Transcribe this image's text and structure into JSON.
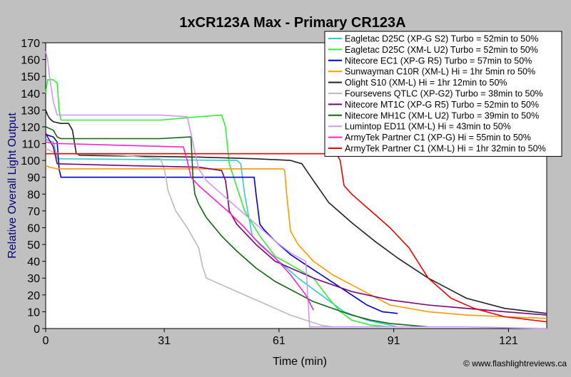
{
  "chart_data": {
    "type": "line",
    "title": "1xCR123A Max - Primary CR123A",
    "xlabel": "Time (min)",
    "ylabel": "Relative Overall Light Output",
    "xlim": [
      0,
      131
    ],
    "ylim": [
      0,
      170
    ],
    "xticks": [
      0,
      31,
      61,
      91,
      121
    ],
    "yticks": [
      0,
      10,
      20,
      30,
      40,
      50,
      60,
      70,
      80,
      90,
      100,
      110,
      120,
      130,
      140,
      150,
      160,
      170
    ],
    "grid": false,
    "legend_position": "top-right",
    "series": [
      {
        "name": "Eagletac D25C (XP-G S2) Turbo = 52min to 50%",
        "color": "#33cccc",
        "x": [
          0,
          0.5,
          2,
          3,
          4,
          48,
          50,
          51,
          52,
          54,
          60,
          66,
          72,
          78,
          84,
          90,
          92
        ],
        "y": [
          113,
          112,
          111,
          101,
          101,
          100,
          100,
          98,
          80,
          55,
          42,
          30,
          20,
          10,
          5,
          2,
          1
        ]
      },
      {
        "name": "Eagletac D25C (XM-L U2) Turbo  = 52min to 50%",
        "color": "#33ee33",
        "x": [
          0,
          0.5,
          2,
          3,
          3.5,
          4,
          30,
          40,
          46,
          47,
          48,
          52,
          56,
          60,
          64,
          67,
          70,
          74,
          77,
          80,
          85,
          90
        ],
        "y": [
          140,
          148,
          148,
          146,
          130,
          124,
          124,
          126,
          127,
          120,
          98,
          70,
          55,
          43,
          38,
          34,
          30,
          18,
          10,
          5,
          2,
          1
        ]
      },
      {
        "name": "Nitecore EC1 (XP-G R5) Turbo = 57min to 50%",
        "color": "#0000cc",
        "x": [
          0,
          0.5,
          2,
          3,
          3.5,
          4,
          50,
          54,
          54.5,
          55,
          56,
          57,
          60,
          64,
          68,
          72,
          76,
          80,
          84,
          88,
          92
        ],
        "y": [
          116,
          115,
          114,
          111,
          95,
          90,
          90,
          90,
          90,
          80,
          62,
          59,
          52,
          44,
          38,
          32,
          26,
          20,
          14,
          10,
          9
        ]
      },
      {
        "name": "Sunwayman C10R (XM-L) Hi = 1hr 5min ro 50%",
        "color": "#ff9900",
        "x": [
          0,
          1,
          3,
          5,
          62,
          62.5,
          63,
          64,
          66,
          70,
          75,
          80,
          85,
          90,
          100,
          110,
          120,
          131
        ],
        "y": [
          97,
          96,
          95,
          95,
          95,
          94,
          80,
          58,
          50,
          40,
          32,
          26,
          20,
          14,
          10,
          8,
          7,
          6
        ]
      },
      {
        "name": "Olight S10 (XM-L) Hi = 1hr 12min to 50%",
        "color": "#222222",
        "x": [
          0,
          0.5,
          1,
          2,
          4,
          6,
          7,
          8,
          9,
          40,
          55,
          64,
          67,
          70,
          74,
          80,
          86,
          92,
          100,
          110,
          120,
          131
        ],
        "y": [
          130,
          127,
          125,
          123,
          122,
          122,
          118,
          104,
          103,
          102,
          101,
          100,
          98,
          88,
          75,
          63,
          52,
          42,
          30,
          18,
          12,
          9
        ]
      },
      {
        "name": "Foursevens QTLC (XP-G2) Turbo = 38min to 50%",
        "color": "#bbbbbb",
        "x": [
          0,
          2,
          4,
          6,
          20,
          30,
          31,
          32,
          34,
          37,
          40,
          41,
          42,
          50,
          58,
          64,
          68,
          72,
          75
        ],
        "y": [
          107,
          105,
          104,
          104,
          103,
          101,
          95,
          82,
          70,
          60,
          48,
          37,
          30,
          22,
          14,
          8,
          5,
          2,
          1
        ]
      },
      {
        "name": "Nitecore MT1C (XP-G R5) Turbo = 52min to 50%",
        "color": "#7a007a",
        "x": [
          0,
          0.5,
          2,
          3,
          20,
          40,
          46,
          47,
          47.5,
          48,
          50,
          55,
          60,
          70,
          80,
          90,
          100,
          110,
          120,
          131
        ],
        "y": [
          116,
          114,
          108,
          98,
          97,
          96,
          94,
          88,
          80,
          70,
          62,
          50,
          40,
          30,
          22,
          17,
          14,
          12,
          10,
          8
        ]
      },
      {
        "name": "Nitecore MH1C (XM-L U2) Turbo = 39min to 50%",
        "color": "#116611",
        "x": [
          0,
          2,
          3,
          4,
          30,
          38,
          38.5,
          39,
          40,
          42,
          46,
          50,
          55,
          60,
          65,
          70,
          75,
          80,
          85,
          90,
          95,
          100
        ],
        "y": [
          120,
          118,
          114,
          113,
          113,
          114,
          90,
          80,
          74,
          66,
          55,
          46,
          36,
          28,
          22,
          16,
          12,
          8,
          5,
          3,
          2,
          1
        ]
      },
      {
        "name": "Lumintop ED11 (XM-L) Hi = 43min to 50%",
        "color": "#cc99ff",
        "x": [
          0,
          0.5,
          1,
          2,
          3,
          30,
          37,
          38,
          39,
          40,
          42,
          46,
          50,
          55,
          60,
          64,
          68,
          68.5,
          69,
          75,
          90,
          110,
          131
        ],
        "y": [
          165,
          160,
          150,
          135,
          127,
          127,
          126,
          116,
          105,
          95,
          88,
          80,
          72,
          62,
          52,
          45,
          40,
          20,
          1,
          1,
          1,
          1,
          0
        ]
      },
      {
        "name": "ArmyTek Partner C1 (XP-G) Hi = 55min to 50%",
        "color": "#ff22cc",
        "x": [
          0,
          2,
          4,
          20,
          36,
          37,
          38,
          40,
          44,
          48,
          52,
          56,
          60,
          64,
          68,
          70
        ],
        "y": [
          111,
          110,
          110,
          109,
          108,
          100,
          90,
          85,
          77,
          69,
          60,
          50,
          42,
          32,
          20,
          11
        ]
      },
      {
        "name": "ArmyTek Partner C1 (XM-L) Hi = 1hr 32min to 50%",
        "color": "#ee0000",
        "x": [
          0,
          1,
          5,
          40,
          60,
          76,
          77,
          78,
          80,
          85,
          90,
          95,
          100,
          106,
          112,
          120,
          131
        ],
        "y": [
          104,
          104,
          104,
          104,
          104,
          104,
          100,
          85,
          80,
          70,
          60,
          48,
          30,
          18,
          12,
          7,
          4
        ]
      }
    ],
    "annotations": [
      "© www.flashlightreviews.ca"
    ]
  }
}
